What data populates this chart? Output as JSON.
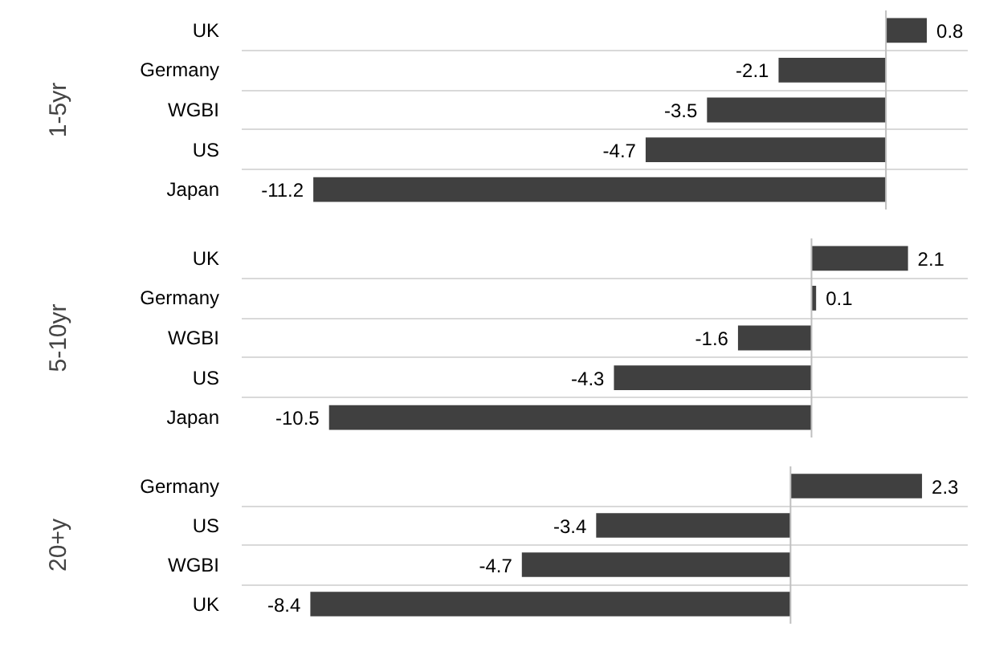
{
  "chart_data": [
    {
      "type": "bar",
      "orientation": "horizontal",
      "ylabel": "1-5yr",
      "categories": [
        "UK",
        "Germany",
        "WGBI",
        "US",
        "Japan"
      ],
      "values": [
        0.8,
        -2.1,
        -3.5,
        -4.7,
        -11.2
      ],
      "color": "#404040",
      "xlim": [
        -12.6,
        1.6
      ],
      "data_labels": true,
      "grid": "y",
      "tick_labels": "y"
    },
    {
      "type": "bar",
      "orientation": "horizontal",
      "ylabel": "5-10yr",
      "categories": [
        "UK",
        "Germany",
        "WGBI",
        "US",
        "Japan"
      ],
      "values": [
        2.1,
        0.1,
        -1.6,
        -4.3,
        -10.5
      ],
      "color": "#404040",
      "xlim": [
        -12.4,
        3.4
      ],
      "data_labels": true,
      "grid": "y",
      "tick_labels": "y"
    },
    {
      "type": "bar",
      "orientation": "horizontal",
      "ylabel": "20+y",
      "categories": [
        "Germany",
        "US",
        "WGBI",
        "UK"
      ],
      "values": [
        2.3,
        -3.4,
        -4.7,
        -8.4
      ],
      "color": "#404040",
      "xlim": [
        -9.6,
        3.1
      ],
      "data_labels": true,
      "grid": "y",
      "tick_labels": "y"
    }
  ]
}
